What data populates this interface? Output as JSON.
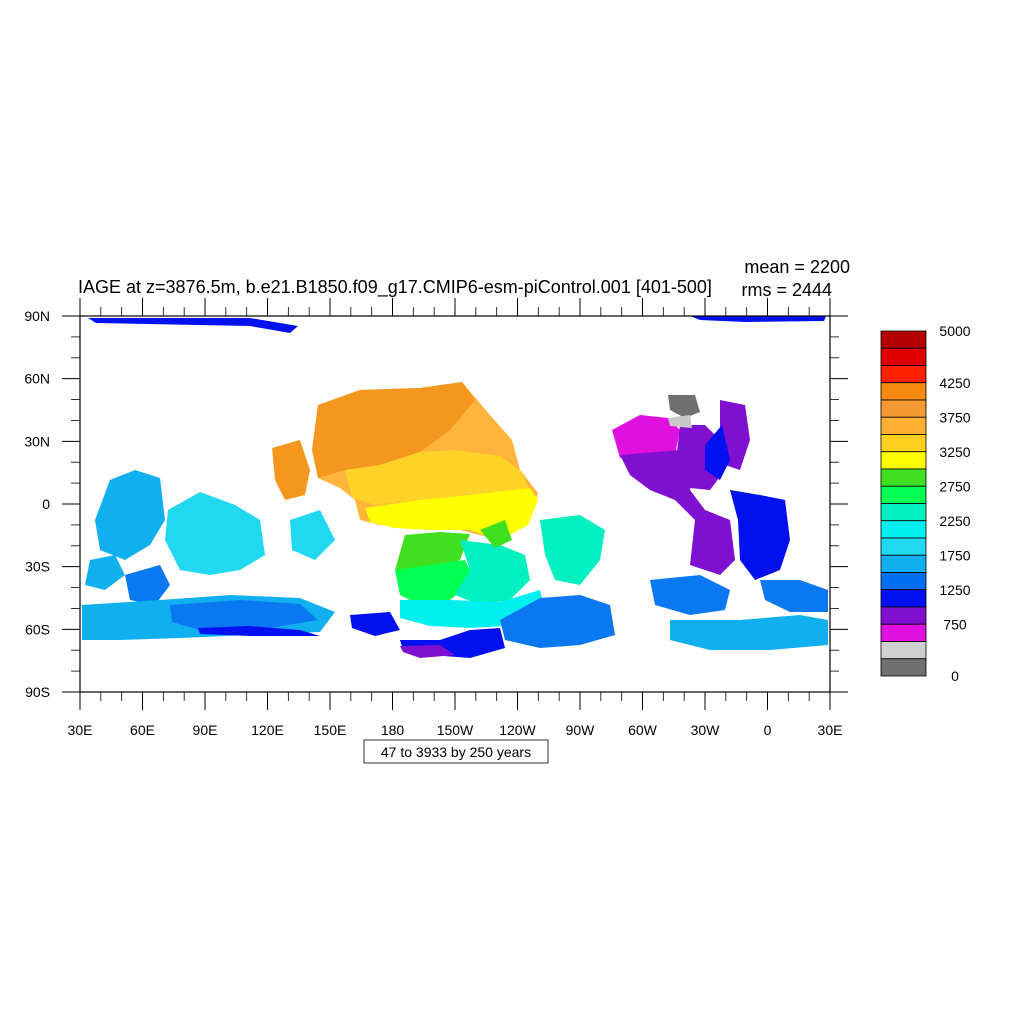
{
  "title": "IAGE at z=3876.5m, b.e21.B1850.f09_g17.CMIP6-esm-piControl.001 [401-500]",
  "stats": {
    "mean": "mean = 2200",
    "rms": "rms = 2444"
  },
  "contour_info": "47 to 3933 by 250 years",
  "axes": {
    "y_ticks": [
      "90N",
      "60N",
      "30N",
      "0",
      "30S",
      "60S",
      "90S"
    ],
    "x_ticks": [
      "30E",
      "60E",
      "90E",
      "120E",
      "150E",
      "180",
      "150W",
      "120W",
      "90W",
      "60W",
      "30W",
      "0",
      "30E"
    ]
  },
  "colorbar": {
    "labels": [
      "5000",
      "4250",
      "3750",
      "3250",
      "2750",
      "2250",
      "1750",
      "1250",
      "750",
      "0"
    ],
    "colors_top_to_bottom": [
      "#b40000",
      "#e00000",
      "#ff2000",
      "#f58a10",
      "#f59a30",
      "#ffb030",
      "#ffd020",
      "#ffff00",
      "#40e020",
      "#00ff50",
      "#00f0c0",
      "#00f0f0",
      "#20d8f0",
      "#10b0f0",
      "#0070f0",
      "#0010f0",
      "#8010d0",
      "#e010e0",
      "#d0d0d0",
      "#707070"
    ]
  },
  "legend_colors": {
    "orange": "#f5961e",
    "orange_light": "#ffb43c",
    "yellow_orange": "#ffd228",
    "yellow": "#ffff00",
    "green": "#40e020",
    "green_bright": "#00ff50",
    "teal": "#00f0c0",
    "cyan": "#00f0f0",
    "sky": "#20d8f0",
    "light_blue": "#10b0f0",
    "blue_mid": "#0a78f0",
    "blue": "#0010f0",
    "purple": "#8010d0",
    "magenta": "#e010e0",
    "light_gray": "#c8c8c8",
    "dark_gray": "#707070"
  }
}
